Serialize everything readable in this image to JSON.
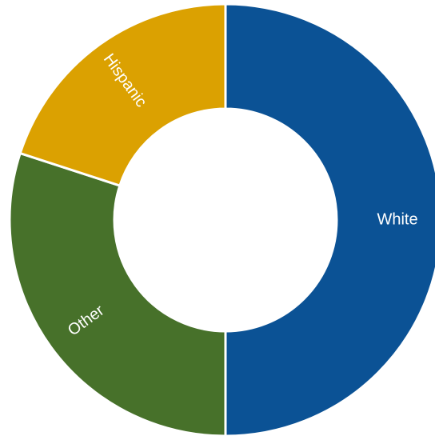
{
  "chart_data": {
    "type": "pie",
    "donut": true,
    "categories": [
      "White",
      "Other",
      "Hispanic"
    ],
    "values": [
      50,
      30,
      20
    ],
    "colors": [
      "#0b5295",
      "#47712a",
      "#dba101"
    ],
    "title": "",
    "legend": "none"
  }
}
